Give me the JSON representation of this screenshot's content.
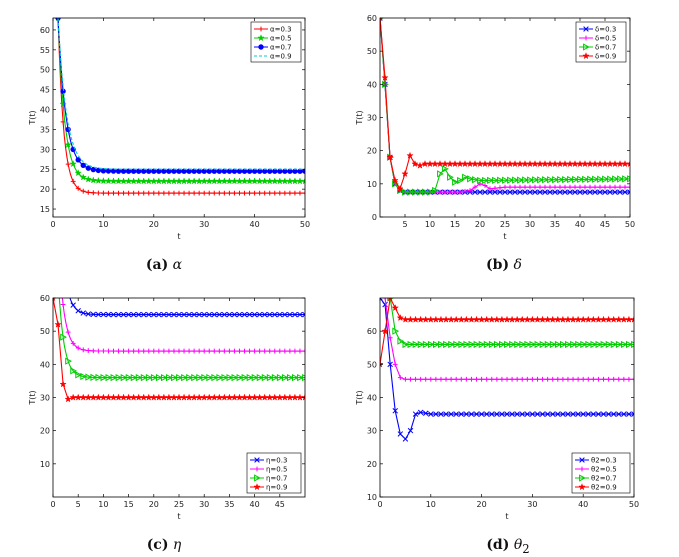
{
  "chart_data": [
    {
      "type": "line",
      "caption_letter": "(a)",
      "caption_symbol": "α",
      "xlabel": "t",
      "ylabel": "T(t)",
      "xlim": [
        0,
        50
      ],
      "ylim": [
        13,
        63
      ],
      "xticks": [
        0,
        10,
        20,
        30,
        40,
        50
      ],
      "yticks": [
        15,
        20,
        25,
        30,
        35,
        40,
        45,
        50,
        55,
        60
      ],
      "legend_position": "top-right",
      "series": [
        {
          "name": "α=0.3",
          "color": "#ff0000",
          "marker": "plus",
          "dashed": false,
          "start": 63,
          "steady": 19,
          "decay": 0.9,
          "x0": 1
        },
        {
          "name": "α=0.5",
          "color": "#00cc00",
          "marker": "star",
          "dashed": false,
          "start": 63,
          "steady": 22,
          "decay": 0.75,
          "x0": 1
        },
        {
          "name": "α=0.7",
          "color": "#0000ff",
          "marker": "dot",
          "dashed": false,
          "start": 63,
          "steady": 24.5,
          "decay": 0.65,
          "x0": 1
        },
        {
          "name": "α=0.9",
          "color": "#00cccc",
          "marker": "none",
          "dashed": true,
          "start": 63,
          "steady": 25,
          "decay": 0.6,
          "x0": 1
        }
      ]
    },
    {
      "type": "line",
      "caption_letter": "(b)",
      "caption_symbol": "δ",
      "xlabel": "t",
      "ylabel": "T(t)",
      "xlim": [
        0,
        50
      ],
      "ylim": [
        0,
        60
      ],
      "xticks": [
        5,
        10,
        15,
        20,
        25,
        30,
        35,
        40,
        45,
        50
      ],
      "yticks": [
        0,
        10,
        20,
        30,
        40,
        50,
        60
      ],
      "legend_position": "top-right",
      "series": [
        {
          "name": "δ=0.3",
          "color": "#0000ff",
          "marker": "x",
          "points": [
            [
              0,
              60
            ],
            [
              1,
              40
            ],
            [
              2,
              18
            ],
            [
              3,
              10
            ],
            [
              4,
              8
            ],
            [
              5,
              7.5
            ],
            [
              6,
              7.5
            ],
            [
              50,
              7.5
            ]
          ]
        },
        {
          "name": "δ=0.5",
          "color": "#ff00ff",
          "marker": "plus",
          "points": [
            [
              0,
              60
            ],
            [
              1,
              40
            ],
            [
              2,
              18
            ],
            [
              3,
              10
            ],
            [
              4,
              8
            ],
            [
              5,
              7.5
            ],
            [
              12,
              7.5
            ],
            [
              16,
              7.5
            ],
            [
              18,
              8
            ],
            [
              19,
              9
            ],
            [
              20,
              10
            ],
            [
              21,
              9.5
            ],
            [
              22,
              8.5
            ],
            [
              25,
              9
            ],
            [
              50,
              9
            ]
          ]
        },
        {
          "name": "δ=0.7",
          "color": "#00cc00",
          "marker": "triangle",
          "points": [
            [
              0,
              60
            ],
            [
              1,
              40
            ],
            [
              2,
              18
            ],
            [
              3,
              10
            ],
            [
              4,
              8
            ],
            [
              5,
              7.5
            ],
            [
              10,
              7.5
            ],
            [
              11,
              8
            ],
            [
              12,
              13
            ],
            [
              13,
              14.5
            ],
            [
              14,
              12
            ],
            [
              15,
              10.5
            ],
            [
              16,
              11
            ],
            [
              17,
              12
            ],
            [
              18,
              11.5
            ],
            [
              20,
              11
            ],
            [
              50,
              11.5
            ]
          ]
        },
        {
          "name": "δ=0.9",
          "color": "#ff0000",
          "marker": "star",
          "points": [
            [
              0,
              60
            ],
            [
              1,
              42
            ],
            [
              2,
              18
            ],
            [
              3,
              11
            ],
            [
              4,
              8.5
            ],
            [
              5,
              13
            ],
            [
              6,
              18.5
            ],
            [
              7,
              16
            ],
            [
              8,
              15.5
            ],
            [
              9,
              16
            ],
            [
              50,
              16
            ]
          ]
        }
      ]
    },
    {
      "type": "line",
      "caption_letter": "(c)",
      "caption_symbol": "η",
      "xlabel": "t",
      "ylabel": "T(t)",
      "xlim": [
        0,
        50
      ],
      "ylim": [
        0,
        60
      ],
      "xticks": [
        0,
        5,
        10,
        15,
        20,
        25,
        30,
        35,
        40,
        45
      ],
      "yticks": [
        10,
        20,
        30,
        40,
        50,
        60
      ],
      "legend_position": "bottom-right",
      "series": [
        {
          "name": "η=0.3",
          "color": "#0000ff",
          "marker": "x",
          "start": 66,
          "steady": 55,
          "decay": 0.9,
          "x0": 2.5
        },
        {
          "name": "η=0.5",
          "color": "#ff00ff",
          "marker": "plus",
          "start": 66,
          "steady": 44,
          "decay": 0.9,
          "x0": 1.5
        },
        {
          "name": "η=0.7",
          "color": "#00cc00",
          "marker": "triangle",
          "start": 66,
          "steady": 36,
          "decay": 0.9,
          "x0": 1
        },
        {
          "name": "η=0.9",
          "color": "#ff0000",
          "marker": "star",
          "points": [
            [
              0,
              60
            ],
            [
              1,
              52
            ],
            [
              2,
              34
            ],
            [
              3,
              29.5
            ],
            [
              4,
              30
            ],
            [
              50,
              30
            ]
          ]
        }
      ]
    },
    {
      "type": "line",
      "caption_letter": "(d)",
      "caption_symbol": "θ",
      "caption_sub": "2",
      "xlabel": "t",
      "ylabel": "T(t)",
      "xlim": [
        0,
        50
      ],
      "ylim": [
        10,
        70
      ],
      "xticks": [
        0,
        10,
        20,
        30,
        40,
        50
      ],
      "yticks": [
        10,
        20,
        30,
        40,
        50,
        60
      ],
      "legend_position": "bottom-right",
      "series": [
        {
          "name": "θ2=0.3",
          "color": "#0000ff",
          "marker": "x",
          "points": [
            [
              0,
              70
            ],
            [
              1,
              68
            ],
            [
              2,
              50
            ],
            [
              3,
              36
            ],
            [
              4,
              29
            ],
            [
              5,
              27.5
            ],
            [
              6,
              30
            ],
            [
              7,
              35
            ],
            [
              8,
              35.5
            ],
            [
              10,
              35
            ],
            [
              50,
              35
            ]
          ]
        },
        {
          "name": "θ2=0.5",
          "color": "#ff00ff",
          "marker": "plus",
          "points": [
            [
              1,
              70
            ],
            [
              2,
              58
            ],
            [
              3,
              50
            ],
            [
              4,
              46
            ],
            [
              5,
              45.5
            ],
            [
              50,
              45.5
            ]
          ]
        },
        {
          "name": "θ2=0.7",
          "color": "#00cc00",
          "marker": "triangle",
          "points": [
            [
              2,
              70
            ],
            [
              3,
              60
            ],
            [
              4,
              57
            ],
            [
              5,
              56
            ],
            [
              50,
              56
            ]
          ]
        },
        {
          "name": "θ2=0.9",
          "color": "#ff0000",
          "marker": "star",
          "points": [
            [
              0,
              50
            ],
            [
              1,
              60
            ],
            [
              2,
              70
            ],
            [
              3,
              67
            ],
            [
              4,
              64
            ],
            [
              5,
              63.5
            ],
            [
              50,
              63.5
            ]
          ]
        }
      ]
    }
  ]
}
